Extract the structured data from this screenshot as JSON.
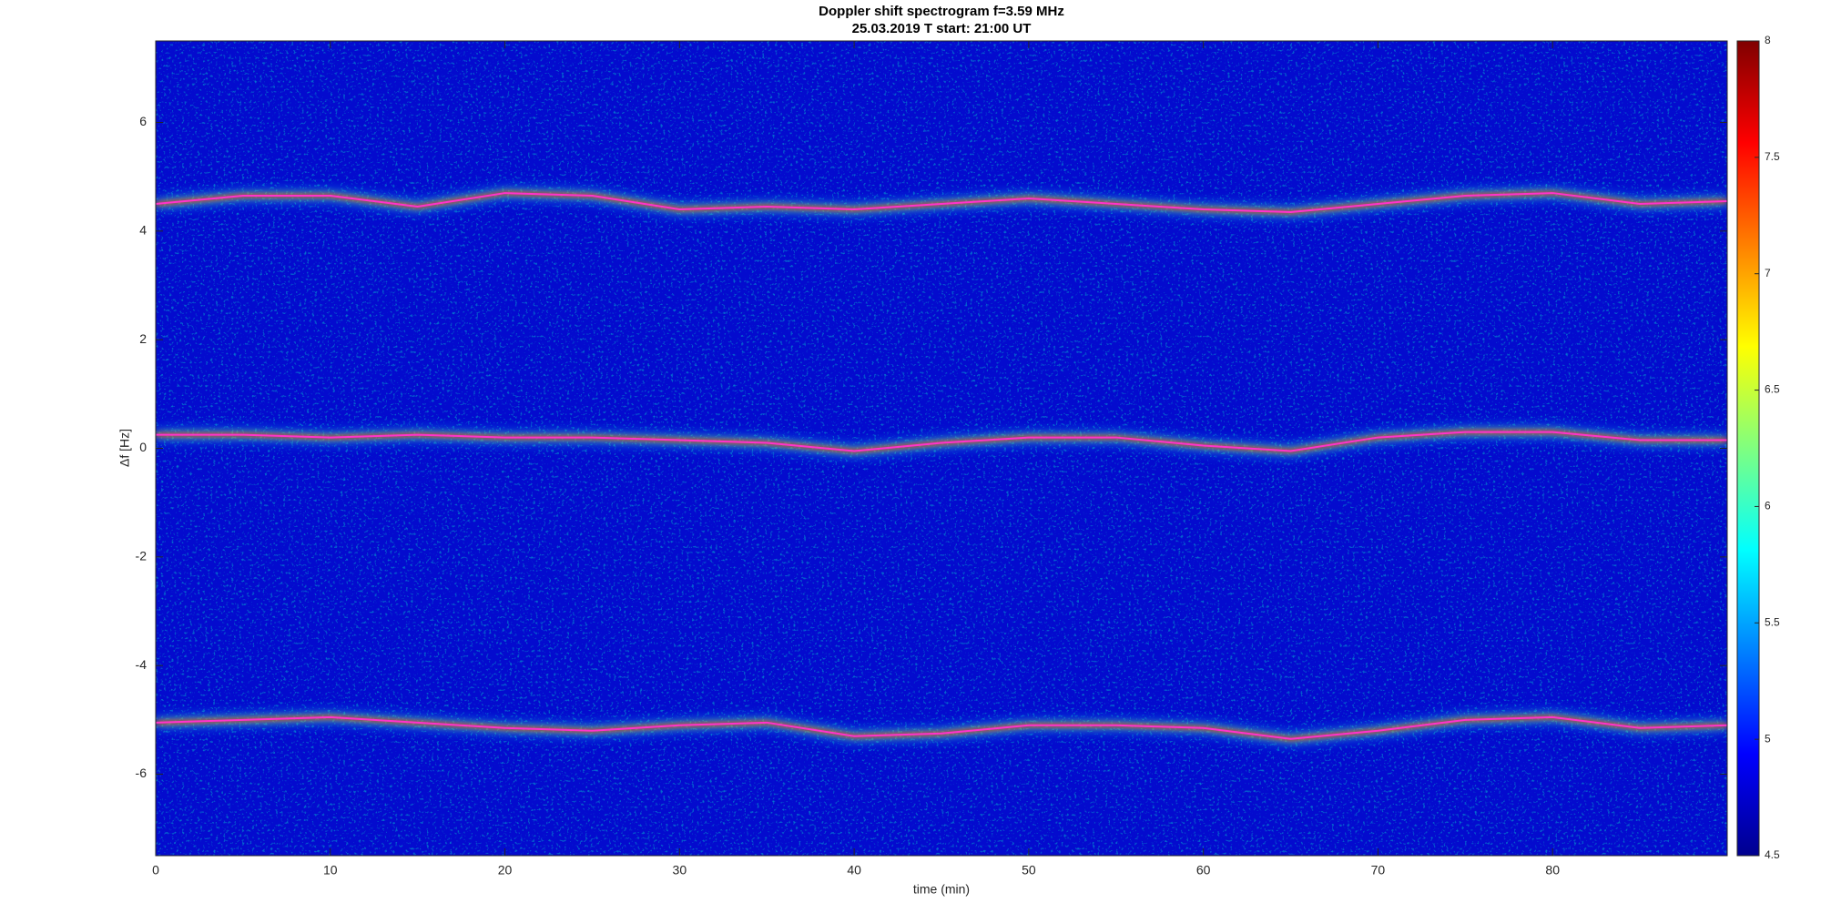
{
  "chart_data": {
    "type": "line",
    "title": "Doppler shift spectrogram f=3.59 MHz",
    "subtitle": "25.03.2019   T start: 21:00 UT",
    "xlabel": "time (min)",
    "ylabel": "Δf [Hz]",
    "x": [
      0,
      5,
      10,
      15,
      20,
      25,
      30,
      35,
      40,
      45,
      50,
      55,
      60,
      65,
      70,
      75,
      80,
      85,
      90
    ],
    "series": [
      {
        "color": "#ff33cc",
        "values": [
          4.5,
          4.65,
          4.65,
          4.45,
          4.7,
          4.65,
          4.4,
          4.45,
          4.4,
          4.5,
          4.6,
          4.5,
          4.4,
          4.35,
          4.5,
          4.65,
          4.7,
          4.5,
          4.55
        ]
      },
      {
        "color": "#ff33cc",
        "values": [
          0.25,
          0.25,
          0.2,
          0.25,
          0.2,
          0.2,
          0.15,
          0.1,
          -0.05,
          0.1,
          0.2,
          0.2,
          0.05,
          -0.05,
          0.2,
          0.3,
          0.3,
          0.15,
          0.15
        ]
      },
      {
        "color": "#ff33cc",
        "values": [
          -5.05,
          -5.0,
          -4.95,
          -5.05,
          -5.15,
          -5.2,
          -5.1,
          -5.05,
          -5.3,
          -5.25,
          -5.1,
          -5.1,
          -5.15,
          -5.35,
          -5.2,
          -5.0,
          -4.95,
          -5.15,
          -5.1
        ]
      }
    ],
    "xlim": [
      0,
      90
    ],
    "xticks": [
      0,
      10,
      20,
      30,
      40,
      50,
      60,
      70,
      80
    ],
    "ylim": [
      -7.5,
      7.5
    ],
    "yticks": [
      -6,
      -4,
      -2,
      0,
      2,
      4,
      6
    ],
    "clim": [
      4.5,
      8
    ],
    "cticks": [
      4.5,
      5,
      5.5,
      6,
      6.5,
      7,
      7.5,
      8
    ]
  }
}
